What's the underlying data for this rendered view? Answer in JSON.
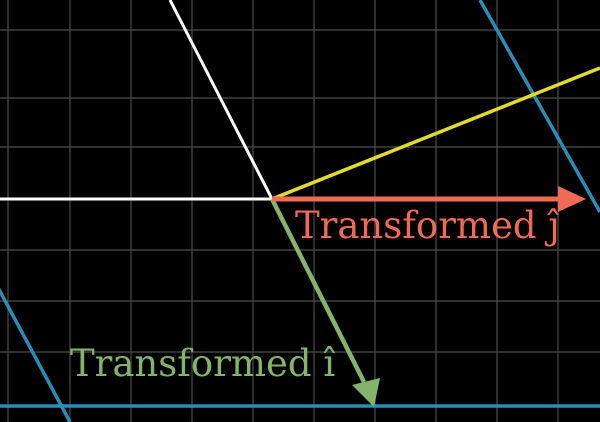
{
  "colors": {
    "background": "#000000",
    "grid": "#8a8a8a",
    "axis": "#ffffff",
    "transformed_i": "#83b46b",
    "transformed_j": "#f06b55",
    "yellow_line": "#e2db2d",
    "blue_lines": "#2a8db6"
  },
  "labels": {
    "transformed_j": "Transformed ĵ",
    "transformed_i": "Transformed î"
  },
  "vectors": {
    "transformed_i": [
      1,
      -2
    ],
    "transformed_j": [
      3,
      0
    ]
  },
  "icons": [
    "vector-arrow"
  ]
}
